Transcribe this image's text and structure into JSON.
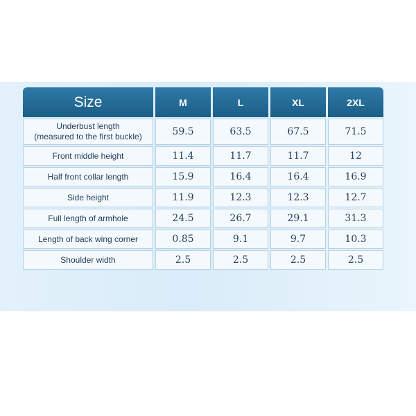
{
  "table": {
    "header": {
      "label": "Size",
      "sizes": [
        "M",
        "L",
        "XL",
        "2XL"
      ]
    },
    "rows": [
      {
        "label_line1": "Underbust length",
        "label_line2": "(measured to the first buckle)",
        "values": [
          "59.5",
          "63.5",
          "67.5",
          "71.5"
        ]
      },
      {
        "label": "Front middle height",
        "values": [
          "11.4",
          "11.7",
          "11.7",
          "12"
        ]
      },
      {
        "label": "Half front collar length",
        "values": [
          "15.9",
          "16.4",
          "16.4",
          "16.9"
        ]
      },
      {
        "label": "Side height",
        "values": [
          "11.9",
          "12.3",
          "12.3",
          "12.7"
        ]
      },
      {
        "label": "Full length of armhole",
        "values": [
          "24.5",
          "26.7",
          "29.1",
          "31.3"
        ]
      },
      {
        "label": "Length of back wing corner",
        "values": [
          "0.85",
          "9.1",
          "9.7",
          "10.3"
        ]
      },
      {
        "label": "Shoulder width",
        "values": [
          "2.5",
          "2.5",
          "2.5",
          "2.5"
        ]
      }
    ]
  },
  "colors": {
    "header_bg": "#1b5e88",
    "cell_bg": "#f4f9fd",
    "panel_bg": "#d9ecf9"
  }
}
